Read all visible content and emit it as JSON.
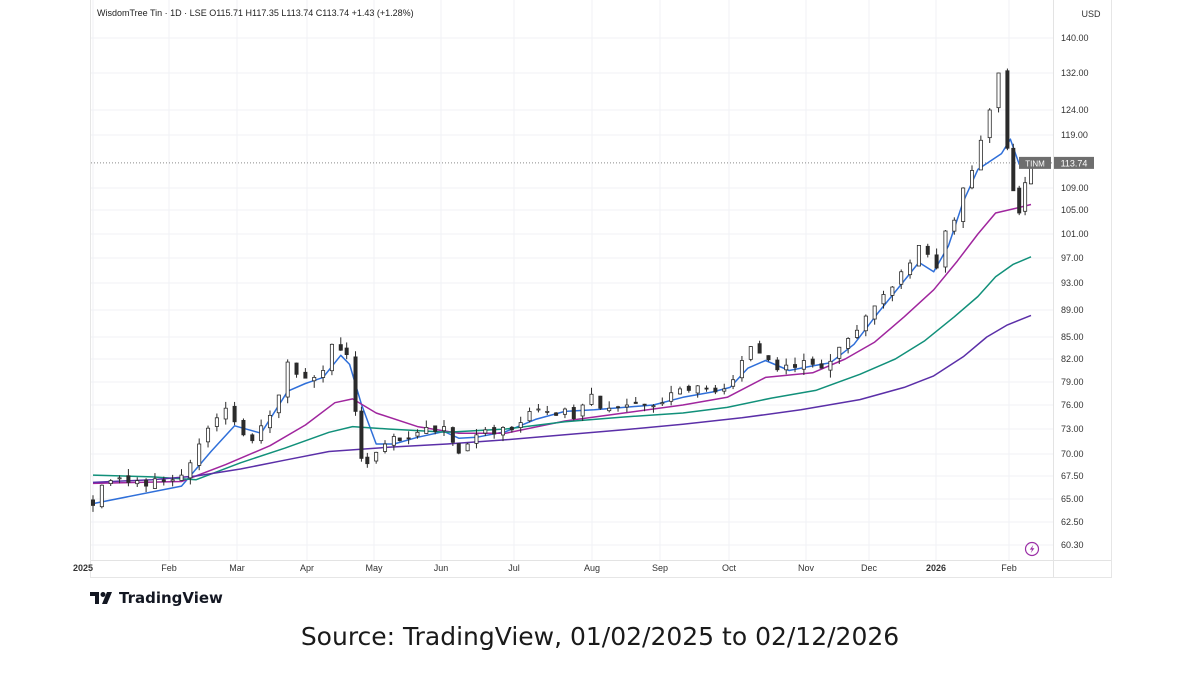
{
  "legend": {
    "text": "WisdomTree Tin · 1D · LSE  O115.71  H117.35  L113.74  C113.74  +1.43 (+1.28%)"
  },
  "currency": "USD",
  "price_tag": {
    "symbol": "TINM",
    "value": "113.74"
  },
  "brand": {
    "name": "TradingView"
  },
  "source": {
    "text": "Source: TradingView, 01/02/2025 to 02/12/2026"
  },
  "colors": {
    "candle": "#2b2b2b",
    "ma_fast": "#2f6fd9",
    "ma_mid": "#a0269e",
    "ma_slow": "#11907a",
    "ma_long": "#5b2fa8",
    "price_tag_bg": "#6e6e6e"
  },
  "chart_data": {
    "type": "candlestick",
    "title": "WisdomTree Tin · 1D · LSE",
    "y_ticks": [
      "140.00",
      "132.00",
      "124.00",
      "119.00",
      "109.00",
      "105.00",
      "101.00",
      "97.00",
      "93.00",
      "89.00",
      "85.00",
      "82.00",
      "79.00",
      "76.00",
      "73.00",
      "70.00",
      "67.50",
      "65.00",
      "62.50",
      "60.30"
    ],
    "x_ticks": [
      "2025",
      "Feb",
      "Mar",
      "Apr",
      "May",
      "Jun",
      "Jul",
      "Aug",
      "Sep",
      "Oct",
      "Nov",
      "Dec",
      "2026",
      "Feb"
    ],
    "x_range": [
      "2025-01-02",
      "2026-02-12"
    ],
    "close_series": [
      [
        0,
        64.3
      ],
      [
        3,
        66.5
      ],
      [
        6,
        67.0
      ],
      [
        9,
        67.3
      ],
      [
        12,
        66.8
      ],
      [
        15,
        67.0
      ],
      [
        18,
        66.4
      ],
      [
        21,
        67.2
      ],
      [
        24,
        66.9
      ],
      [
        27,
        67.1
      ],
      [
        30,
        67.6
      ],
      [
        33,
        69.0
      ],
      [
        36,
        71.2
      ],
      [
        39,
        73.1
      ],
      [
        42,
        74.4
      ],
      [
        45,
        75.6
      ],
      [
        48,
        73.9
      ],
      [
        51,
        72.3
      ],
      [
        54,
        71.6
      ],
      [
        57,
        73.4
      ],
      [
        60,
        74.7
      ],
      [
        63,
        77.3
      ],
      [
        66,
        81.6
      ],
      [
        69,
        80.0
      ],
      [
        72,
        79.5
      ],
      [
        75,
        79.6
      ],
      [
        78,
        80.5
      ],
      [
        81,
        84.0
      ],
      [
        84,
        83.2
      ],
      [
        86,
        82.6
      ],
      [
        89,
        75.2
      ],
      [
        91,
        69.5
      ],
      [
        93,
        68.9
      ],
      [
        96,
        70.2
      ],
      [
        99,
        71.2
      ],
      [
        102,
        72.1
      ],
      [
        104,
        71.6
      ],
      [
        107,
        71.9
      ],
      [
        110,
        72.6
      ],
      [
        113,
        73.2
      ],
      [
        116,
        72.7
      ],
      [
        119,
        73.3
      ],
      [
        122,
        71.4
      ],
      [
        124,
        70.1
      ],
      [
        127,
        71.2
      ],
      [
        130,
        72.3
      ],
      [
        133,
        72.9
      ],
      [
        136,
        72.4
      ],
      [
        139,
        73.2
      ],
      [
        142,
        72.9
      ],
      [
        145,
        73.8
      ],
      [
        148,
        75.2
      ],
      [
        151,
        75.5
      ],
      [
        154,
        75.2
      ],
      [
        157,
        74.7
      ],
      [
        160,
        75.5
      ],
      [
        163,
        74.3
      ],
      [
        166,
        76.0
      ],
      [
        169,
        77.4
      ],
      [
        172,
        75.6
      ],
      [
        175,
        75.6
      ],
      [
        178,
        75.7
      ],
      [
        181,
        76.0
      ],
      [
        184,
        76.2
      ],
      [
        187,
        76.1
      ],
      [
        190,
        75.9
      ],
      [
        193,
        76.3
      ],
      [
        196,
        77.6
      ],
      [
        199,
        78.1
      ],
      [
        202,
        77.9
      ],
      [
        205,
        78.5
      ],
      [
        208,
        78.2
      ],
      [
        211,
        77.7
      ],
      [
        214,
        78.1
      ],
      [
        217,
        79.3
      ],
      [
        220,
        81.8
      ],
      [
        223,
        83.7
      ],
      [
        226,
        82.8
      ],
      [
        229,
        81.9
      ],
      [
        232,
        80.6
      ],
      [
        235,
        81.2
      ],
      [
        238,
        80.9
      ],
      [
        241,
        81.8
      ],
      [
        244,
        81.3
      ],
      [
        247,
        80.8
      ],
      [
        250,
        81.7
      ],
      [
        253,
        83.6
      ],
      [
        256,
        84.8
      ],
      [
        259,
        86.0
      ],
      [
        262,
        88.1
      ],
      [
        265,
        89.6
      ],
      [
        268,
        91.3
      ],
      [
        271,
        92.4
      ],
      [
        274,
        94.8
      ],
      [
        277,
        96.2
      ],
      [
        280,
        99.1
      ],
      [
        283,
        97.6
      ],
      [
        286,
        95.4
      ],
      [
        289,
        101.5
      ],
      [
        292,
        103.3
      ],
      [
        295,
        109.0
      ],
      [
        298,
        112.3
      ],
      [
        301,
        118.0
      ],
      [
        304,
        124.0
      ],
      [
        307,
        132.0
      ],
      [
        310,
        116.5
      ],
      [
        312,
        108.5
      ],
      [
        314,
        104.5
      ],
      [
        316,
        110.0
      ],
      [
        318,
        113.74
      ]
    ],
    "moving_averages": [
      {
        "name": "MA fast",
        "values": [
          [
            0,
            64.5
          ],
          [
            30,
            66.4
          ],
          [
            40,
            70.3
          ],
          [
            48,
            73.4
          ],
          [
            57,
            72.5
          ],
          [
            66,
            77.8
          ],
          [
            72,
            78.8
          ],
          [
            78,
            79.6
          ],
          [
            84,
            82.5
          ],
          [
            87,
            81.3
          ],
          [
            91,
            76.1
          ],
          [
            96,
            71.2
          ],
          [
            102,
            71.2
          ],
          [
            110,
            72.0
          ],
          [
            119,
            72.7
          ],
          [
            124,
            71.9
          ],
          [
            130,
            72.0
          ],
          [
            140,
            72.7
          ],
          [
            150,
            74.2
          ],
          [
            160,
            75.2
          ],
          [
            170,
            75.4
          ],
          [
            180,
            75.7
          ],
          [
            190,
            76.0
          ],
          [
            200,
            77.0
          ],
          [
            210,
            77.7
          ],
          [
            216,
            78.3
          ],
          [
            222,
            80.8
          ],
          [
            228,
            81.8
          ],
          [
            236,
            80.5
          ],
          [
            244,
            81.1
          ],
          [
            250,
            81.5
          ],
          [
            258,
            84.0
          ],
          [
            266,
            88.5
          ],
          [
            274,
            92.8
          ],
          [
            280,
            96.3
          ],
          [
            285,
            94.8
          ],
          [
            290,
            99.0
          ],
          [
            295,
            106.5
          ],
          [
            300,
            112.5
          ],
          [
            304,
            114.0
          ],
          [
            308,
            115.5
          ],
          [
            311,
            118.2
          ],
          [
            314,
            113.5
          ],
          [
            318,
            112.6
          ]
        ]
      },
      {
        "name": "MA mid",
        "values": [
          [
            0,
            66.7
          ],
          [
            30,
            66.9
          ],
          [
            45,
            68.8
          ],
          [
            60,
            71.0
          ],
          [
            72,
            73.5
          ],
          [
            82,
            76.3
          ],
          [
            88,
            76.8
          ],
          [
            96,
            75.0
          ],
          [
            110,
            73.3
          ],
          [
            124,
            72.5
          ],
          [
            140,
            72.5
          ],
          [
            160,
            74.0
          ],
          [
            180,
            75.0
          ],
          [
            200,
            76.0
          ],
          [
            215,
            77.0
          ],
          [
            228,
            79.6
          ],
          [
            244,
            80.2
          ],
          [
            255,
            82.0
          ],
          [
            265,
            84.3
          ],
          [
            275,
            88.0
          ],
          [
            285,
            92.0
          ],
          [
            293,
            96.5
          ],
          [
            300,
            101.0
          ],
          [
            306,
            104.5
          ],
          [
            312,
            105.2
          ],
          [
            318,
            106.0
          ]
        ]
      },
      {
        "name": "MA slow",
        "values": [
          [
            0,
            67.6
          ],
          [
            20,
            67.4
          ],
          [
            35,
            67.1
          ],
          [
            50,
            69.0
          ],
          [
            65,
            70.7
          ],
          [
            80,
            72.6
          ],
          [
            88,
            73.3
          ],
          [
            100,
            73.0
          ],
          [
            120,
            72.6
          ],
          [
            140,
            73.0
          ],
          [
            160,
            73.9
          ],
          [
            180,
            74.5
          ],
          [
            200,
            75.0
          ],
          [
            215,
            75.7
          ],
          [
            230,
            76.9
          ],
          [
            245,
            77.9
          ],
          [
            260,
            80.0
          ],
          [
            272,
            82.0
          ],
          [
            282,
            84.5
          ],
          [
            292,
            88.0
          ],
          [
            300,
            91.0
          ],
          [
            306,
            94.0
          ],
          [
            312,
            96.0
          ],
          [
            318,
            97.2
          ]
        ]
      },
      {
        "name": "MA long",
        "values": [
          [
            0,
            66.8
          ],
          [
            20,
            67.1
          ],
          [
            35,
            67.5
          ],
          [
            50,
            68.3
          ],
          [
            65,
            69.3
          ],
          [
            80,
            70.3
          ],
          [
            100,
            70.8
          ],
          [
            120,
            71.2
          ],
          [
            140,
            71.7
          ],
          [
            160,
            72.3
          ],
          [
            180,
            72.9
          ],
          [
            200,
            73.6
          ],
          [
            220,
            74.4
          ],
          [
            240,
            75.4
          ],
          [
            260,
            76.7
          ],
          [
            275,
            78.3
          ],
          [
            285,
            79.8
          ],
          [
            295,
            82.3
          ],
          [
            303,
            85.0
          ],
          [
            310,
            86.8
          ],
          [
            318,
            88.2
          ]
        ]
      }
    ]
  }
}
